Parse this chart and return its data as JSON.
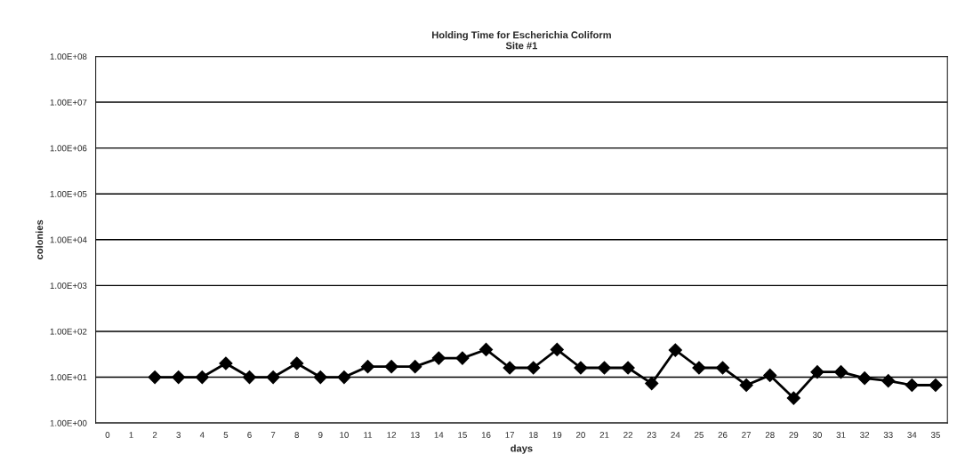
{
  "chart_data": {
    "type": "line",
    "title": "Holding Time for Escherichia Coliform",
    "subtitle": "Site #1",
    "xlabel": "days",
    "ylabel": "colonies",
    "categories": [
      "0",
      "1",
      "2",
      "3",
      "4",
      "5",
      "6",
      "7",
      "8",
      "9",
      "10",
      "11",
      "12",
      "13",
      "14",
      "15",
      "16",
      "17",
      "18",
      "19",
      "20",
      "21",
      "22",
      "23",
      "24",
      "25",
      "26",
      "27",
      "28",
      "29",
      "30",
      "31",
      "32",
      "33",
      "34",
      "35"
    ],
    "series": [
      {
        "color": "#000000",
        "values": [
          null,
          null,
          10,
          10,
          10,
          20,
          10,
          10,
          20,
          10,
          10,
          17,
          17,
          17,
          26,
          26,
          40,
          16,
          16,
          40,
          16,
          16,
          16,
          7.3,
          39,
          16,
          16,
          6.7,
          11,
          3.5,
          13,
          13,
          9.5,
          8.3,
          6.7,
          6.7
        ]
      }
    ],
    "log": true,
    "ylim": [
      1,
      100000000
    ],
    "yticks": [
      {
        "value": 1,
        "label": "1.00E+00"
      },
      {
        "value": 10,
        "label": "1.00E+01"
      },
      {
        "value": 100,
        "label": "1.00E+02"
      },
      {
        "value": 1000,
        "label": "1.00E+03"
      },
      {
        "value": 10000,
        "label": "1.00E+04"
      },
      {
        "value": 100000,
        "label": "1.00E+05"
      },
      {
        "value": 1000000,
        "label": "1.00E+06"
      },
      {
        "value": 10000000,
        "label": "1.00E+07"
      },
      {
        "value": 100000000,
        "label": "1.00E+08"
      }
    ],
    "grid": "y",
    "marker": "diamond",
    "line_style": "solid",
    "legend": false
  }
}
